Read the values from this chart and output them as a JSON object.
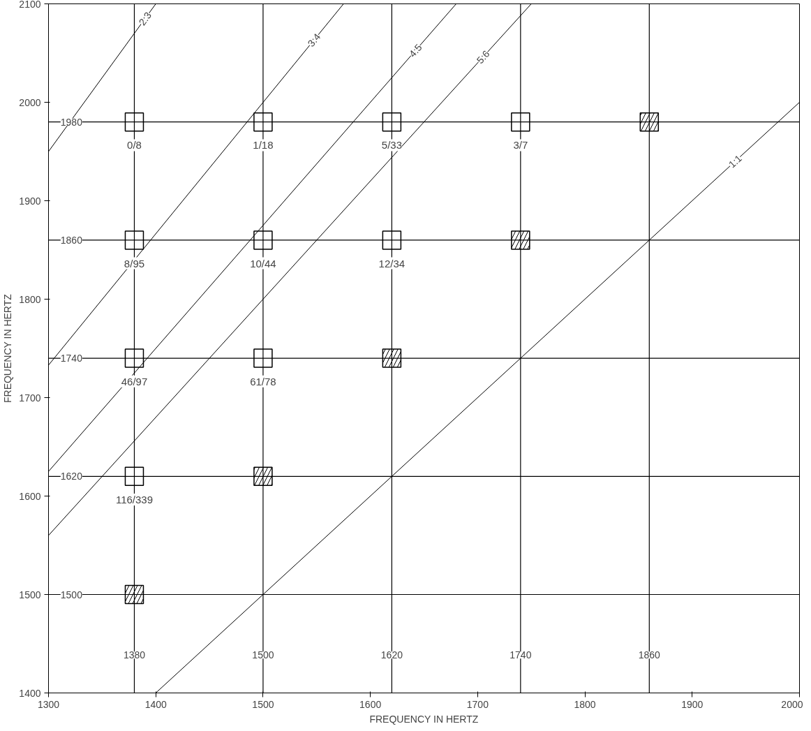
{
  "chart_data": {
    "type": "scatter",
    "xlabel": "FREQUENCY IN HERTZ",
    "ylabel": "FREQUENCY IN HERTZ",
    "xlim": [
      1300,
      2000
    ],
    "ylim": [
      1400,
      2100
    ],
    "xticks": [
      1300,
      1400,
      1500,
      1600,
      1700,
      1800,
      1900,
      2000
    ],
    "yticks": [
      1400,
      1500,
      1600,
      1700,
      1800,
      1900,
      2000,
      2100
    ],
    "grid": false,
    "legend": false,
    "marker": "square",
    "series": [
      {
        "color": "#000000",
        "x": [
          1380,
          1500,
          1620,
          1740,
          1380,
          1500,
          1620,
          1380,
          1500,
          1380
        ],
        "values": [
          1980,
          1980,
          1980,
          1980,
          1860,
          1860,
          1860,
          1740,
          1740,
          1620
        ]
      },
      {
        "color": "#000000",
        "x": [
          1860,
          1740,
          1620,
          1500,
          1380
        ],
        "values": [
          1980,
          1860,
          1740,
          1620,
          1500
        ]
      },
      {
        "type": "line",
        "marker": "none",
        "name": "2:3",
        "color": "#000000",
        "x": [
          1300,
          1400
        ],
        "values": [
          1950,
          2100
        ]
      },
      {
        "type": "line",
        "marker": "none",
        "name": "3:4",
        "color": "#000000",
        "x": [
          1300,
          1575
        ],
        "values": [
          1733,
          2100
        ]
      },
      {
        "type": "line",
        "marker": "none",
        "name": "4:5",
        "color": "#000000",
        "x": [
          1300,
          1680
        ],
        "values": [
          1625,
          2100
        ]
      },
      {
        "type": "line",
        "marker": "none",
        "name": "5:6",
        "color": "#000000",
        "x": [
          1300,
          1750
        ],
        "values": [
          1560,
          2100
        ]
      },
      {
        "type": "line",
        "marker": "none",
        "name": "1:1",
        "color": "#000000",
        "x": [
          1400,
          2000
        ],
        "values": [
          1400,
          2000
        ]
      }
    ],
    "annotations": [
      {
        "text": "0/8",
        "x": 1380,
        "y": 1980
      },
      {
        "text": "1/18",
        "x": 1500,
        "y": 1980
      },
      {
        "text": "5/33",
        "x": 1620,
        "y": 1980
      },
      {
        "text": "3/7",
        "x": 1740,
        "y": 1980
      },
      {
        "text": "8/95",
        "x": 1380,
        "y": 1860
      },
      {
        "text": "10/44",
        "x": 1500,
        "y": 1860
      },
      {
        "text": "12/34",
        "x": 1620,
        "y": 1860
      },
      {
        "text": "46/97",
        "x": 1380,
        "y": 1740
      },
      {
        "text": "61/78",
        "x": 1500,
        "y": 1740
      },
      {
        "text": "116/339",
        "x": 1380,
        "y": 1620
      }
    ],
    "ref_lines": [
      {
        "axis": "x",
        "value": 1380,
        "label": "1380"
      },
      {
        "axis": "x",
        "value": 1500,
        "label": "1500"
      },
      {
        "axis": "x",
        "value": 1620,
        "label": "1620"
      },
      {
        "axis": "x",
        "value": 1740,
        "label": "1740"
      },
      {
        "axis": "x",
        "value": 1860,
        "label": "1860"
      },
      {
        "axis": "y",
        "value": 1500,
        "label": "1500"
      },
      {
        "axis": "y",
        "value": 1620,
        "label": "1620"
      },
      {
        "axis": "y",
        "value": 1740,
        "label": "1740"
      },
      {
        "axis": "y",
        "value": 1860,
        "label": "1860"
      },
      {
        "axis": "y",
        "value": 1980,
        "label": "1980"
      }
    ]
  }
}
